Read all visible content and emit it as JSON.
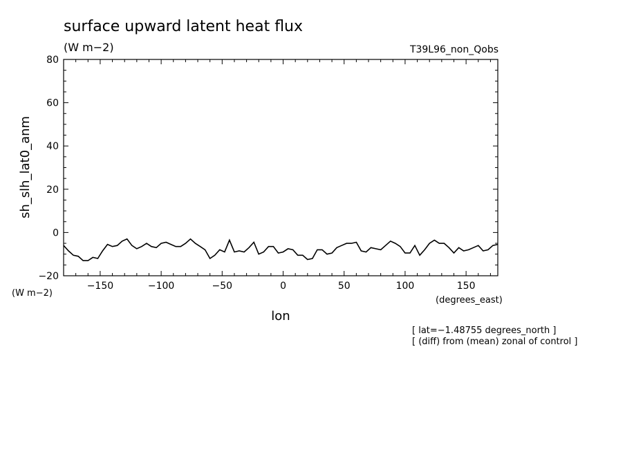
{
  "chart_data": {
    "type": "line",
    "title": "surface upward latent heat flux",
    "title_units": "(W m−2)",
    "experiment": "T39L96_non_Qobs",
    "ylabel": "sh_slh_lat0_anm",
    "y_units": "(W m−2)",
    "xlabel": "lon",
    "x_units": "(degrees_east)",
    "xlim": [
      -180,
      176
    ],
    "ylim": [
      -20,
      80
    ],
    "x_ticks": [
      -150,
      -100,
      -50,
      0,
      50,
      100,
      150
    ],
    "x_tick_labels": [
      "−150",
      "−100",
      "−50",
      "0",
      "50",
      "100",
      "150"
    ],
    "y_ticks": [
      -20,
      0,
      20,
      40,
      60,
      80
    ],
    "y_tick_labels": [
      "−20",
      "0",
      "20",
      "40",
      "60",
      "80"
    ],
    "grid": false,
    "annotations": [
      "[ lat=−1.48755 degrees_north ]",
      "[ (diff) from (mean) zonal of control ]"
    ],
    "series": [
      {
        "x": [
          -180,
          -176,
          -172,
          -168,
          -164,
          -160,
          -156,
          -152,
          -148,
          -144,
          -140,
          -136,
          -132,
          -128,
          -124,
          -120,
          -116,
          -112,
          -108,
          -104,
          -100,
          -96,
          -92,
          -88,
          -84,
          -80,
          -76,
          -72,
          -68,
          -64,
          -60,
          -56,
          -52,
          -48,
          -44,
          -40,
          -36,
          -32,
          -28,
          -24,
          -20,
          -16,
          -12,
          -8,
          -4,
          0,
          4,
          8,
          12,
          16,
          20,
          24,
          28,
          32,
          36,
          40,
          44,
          48,
          52,
          56,
          60,
          64,
          68,
          72,
          76,
          80,
          84,
          88,
          92,
          96,
          100,
          104,
          108,
          112,
          116,
          120,
          124,
          128,
          132,
          136,
          140,
          144,
          148,
          152,
          156,
          160,
          164,
          168,
          172,
          176
        ],
        "values": [
          -6,
          -8.5,
          -10.5,
          -11,
          -13,
          -13,
          -11.5,
          -12,
          -8.5,
          -5.5,
          -6.5,
          -6,
          -4,
          -3,
          -6,
          -7.5,
          -6.5,
          -5,
          -6.5,
          -7,
          -5,
          -4.5,
          -5.5,
          -6.5,
          -6.5,
          -5,
          -3,
          -5,
          -6.5,
          -8,
          -12,
          -10.5,
          -8,
          -9,
          -3.5,
          -9,
          -8.5,
          -9,
          -7,
          -4.5,
          -10,
          -9,
          -6.5,
          -6.5,
          -9.5,
          -9,
          -7.5,
          -8,
          -10.5,
          -10.5,
          -12.5,
          -12,
          -8,
          -8,
          -10,
          -9.5,
          -7,
          -6,
          -5,
          -5,
          -4.5,
          -8.5,
          -9,
          -7,
          -7.5,
          -8,
          -6,
          -4,
          -5,
          -6.5,
          -9.5,
          -9.5,
          -6,
          -10.5,
          -8,
          -5,
          -3.5,
          -5,
          -5,
          -7,
          -9.5,
          -7,
          -8.5,
          -8,
          -7,
          -6,
          -8.5,
          -8,
          -6,
          -5.5
        ]
      }
    ]
  }
}
